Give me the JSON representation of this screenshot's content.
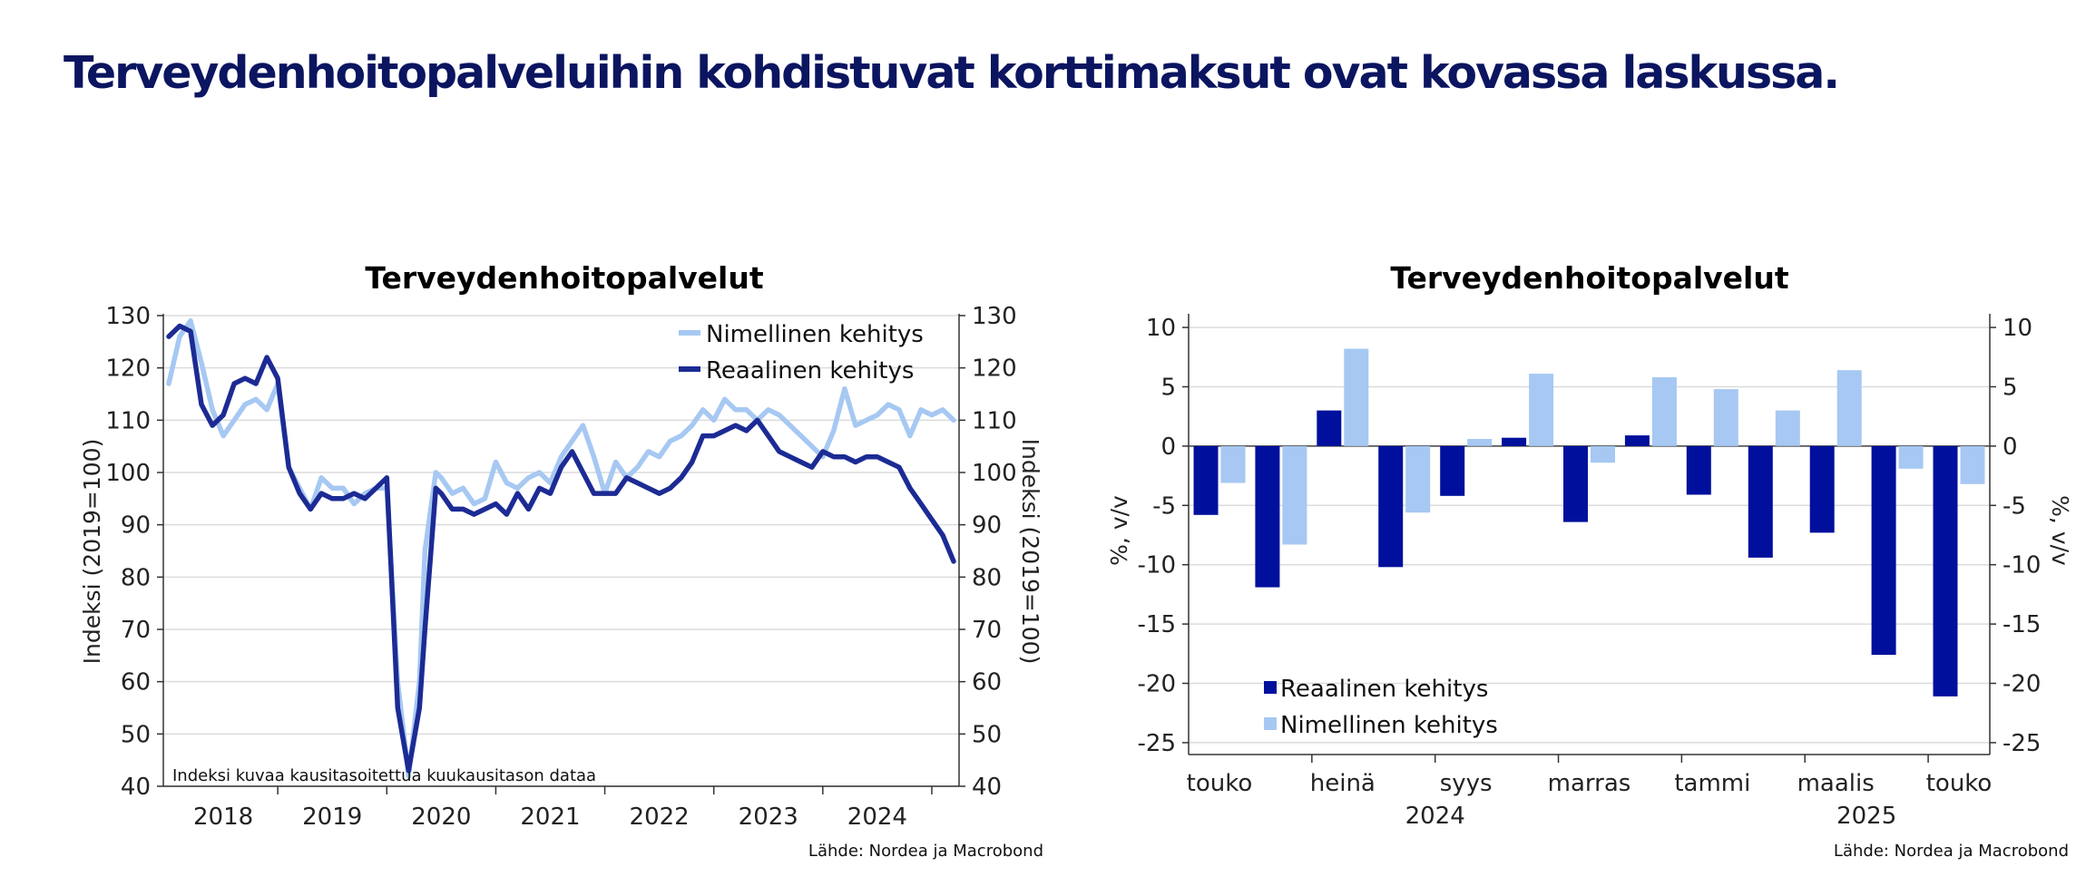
{
  "page": {
    "title": "Terveydenhoitopalveluihin kohdistuvat korttimaksut ovat kovassa laskussa."
  },
  "colors": {
    "real": "#1c2b94",
    "nominal": "#a6c8f2",
    "bar_real": "#00109c",
    "bar_nominal": "#a6c8f2",
    "title": "#0b1560"
  },
  "chart_data": [
    {
      "type": "line",
      "title": "Terveydenhoitopalvelut",
      "ylabel_left": "Indeksi (2019=100)",
      "ylabel_right": "Indeksi (2019=100)",
      "ylim": [
        40,
        130
      ],
      "yticks": [
        40,
        50,
        60,
        70,
        80,
        90,
        100,
        110,
        120,
        130
      ],
      "xlim": [
        2017.95,
        2025.25
      ],
      "year_labels": [
        "2018",
        "2019",
        "2020",
        "2021",
        "2022",
        "2023",
        "2024"
      ],
      "note": "Indeksi kuvaa kausitasoitettua kuukausitason dataa",
      "source": "Lähde: Nordea ja Macrobond",
      "grid": true,
      "legend_position": "top-right",
      "series": [
        {
          "name": "Nimellinen kehitys",
          "key": "nominal",
          "x": [
            2018.0,
            2018.1,
            2018.2,
            2018.3,
            2018.4,
            2018.5,
            2018.6,
            2018.7,
            2018.8,
            2018.9,
            2019.0,
            2019.1,
            2019.2,
            2019.3,
            2019.4,
            2019.5,
            2019.6,
            2019.7,
            2019.8,
            2019.9,
            2020.0,
            2020.1,
            2020.2,
            2020.3,
            2020.35,
            2020.45,
            2020.5,
            2020.6,
            2020.7,
            2020.8,
            2020.9,
            2021.0,
            2021.1,
            2021.2,
            2021.3,
            2021.4,
            2021.5,
            2021.6,
            2021.7,
            2021.8,
            2021.9,
            2022.0,
            2022.1,
            2022.2,
            2022.3,
            2022.4,
            2022.5,
            2022.6,
            2022.7,
            2022.8,
            2022.9,
            2023.0,
            2023.1,
            2023.2,
            2023.3,
            2023.4,
            2023.5,
            2023.6,
            2023.7,
            2023.8,
            2023.9,
            2024.0,
            2024.1,
            2024.2,
            2024.3,
            2024.4,
            2024.5,
            2024.6,
            2024.7,
            2024.8,
            2024.9,
            2025.0,
            2025.1,
            2025.2
          ],
          "y": [
            117,
            126,
            129,
            121,
            112,
            107,
            110,
            113,
            114,
            112,
            117,
            101,
            97,
            93,
            99,
            97,
            97,
            94,
            96,
            97,
            97,
            60,
            42,
            60,
            85,
            100,
            99,
            96,
            97,
            94,
            95,
            102,
            98,
            97,
            99,
            100,
            98,
            103,
            106,
            109,
            103,
            96,
            102,
            99,
            101,
            104,
            103,
            106,
            107,
            109,
            112,
            110,
            114,
            112,
            112,
            110,
            112,
            111,
            109,
            107,
            105,
            103,
            108,
            116,
            109,
            110,
            111,
            113,
            112,
            107,
            112,
            111,
            112,
            110
          ]
        },
        {
          "name": "Reaalinen kehitys",
          "key": "real",
          "x": [
            2018.0,
            2018.1,
            2018.2,
            2018.3,
            2018.4,
            2018.5,
            2018.6,
            2018.7,
            2018.8,
            2018.9,
            2019.0,
            2019.1,
            2019.2,
            2019.3,
            2019.4,
            2019.5,
            2019.6,
            2019.7,
            2019.8,
            2019.9,
            2020.0,
            2020.1,
            2020.2,
            2020.3,
            2020.35,
            2020.45,
            2020.5,
            2020.6,
            2020.7,
            2020.8,
            2020.9,
            2021.0,
            2021.1,
            2021.2,
            2021.3,
            2021.4,
            2021.5,
            2021.6,
            2021.7,
            2021.8,
            2021.9,
            2022.0,
            2022.1,
            2022.2,
            2022.3,
            2022.4,
            2022.5,
            2022.6,
            2022.7,
            2022.8,
            2022.9,
            2023.0,
            2023.1,
            2023.2,
            2023.3,
            2023.4,
            2023.5,
            2023.6,
            2023.7,
            2023.8,
            2023.9,
            2024.0,
            2024.1,
            2024.2,
            2024.3,
            2024.4,
            2024.5,
            2024.6,
            2024.7,
            2024.8,
            2024.9,
            2025.0,
            2025.1,
            2025.2
          ],
          "y": [
            126,
            128,
            127,
            113,
            109,
            111,
            117,
            118,
            117,
            122,
            118,
            101,
            96,
            93,
            96,
            95,
            95,
            96,
            95,
            97,
            99,
            55,
            43,
            55,
            70,
            97,
            96,
            93,
            93,
            92,
            93,
            94,
            92,
            96,
            93,
            97,
            96,
            101,
            104,
            100,
            96,
            96,
            96,
            99,
            98,
            97,
            96,
            97,
            99,
            102,
            107,
            107,
            108,
            109,
            108,
            110,
            107,
            104,
            103,
            102,
            101,
            104,
            103,
            103,
            102,
            103,
            103,
            102,
            101,
            97,
            94,
            91,
            88,
            83
          ]
        }
      ]
    },
    {
      "type": "bar",
      "title": "Terveydenhoitopalvelut",
      "ylabel_left": "%, v/v",
      "ylabel_right": "%, v/v",
      "ylim": [
        -26,
        11
      ],
      "yticks": [
        10,
        5,
        0,
        -5,
        -10,
        -15,
        -20,
        -25
      ],
      "month_labels": [
        "touko",
        "heinä",
        "syys",
        "marras",
        "tammi",
        "maalis",
        "touko"
      ],
      "year_labels": [
        "2024",
        "2025"
      ],
      "source": "Lähde: Nordea ja Macrobond",
      "grid": true,
      "legend_position": "bottom-left",
      "categories": [
        "05/2024",
        "06/2024",
        "07/2024",
        "08/2024",
        "09/2024",
        "10/2024",
        "11/2024",
        "12/2024",
        "01/2025",
        "02/2025",
        "03/2025",
        "04/2025",
        "05/2025"
      ],
      "series": [
        {
          "name": "Reaalinen kehitys",
          "key": "real",
          "values": [
            -5.8,
            -11.9,
            3.0,
            -10.2,
            -4.2,
            0.7,
            -6.4,
            0.9,
            -4.1,
            -9.4,
            -7.3,
            -17.6,
            -21.1
          ]
        },
        {
          "name": "Nimellinen kehitys",
          "key": "nominal",
          "values": [
            -3.1,
            -8.3,
            8.2,
            -5.6,
            0.6,
            6.1,
            -1.4,
            5.8,
            4.8,
            3.0,
            6.4,
            -1.9,
            -3.2
          ]
        }
      ]
    }
  ]
}
